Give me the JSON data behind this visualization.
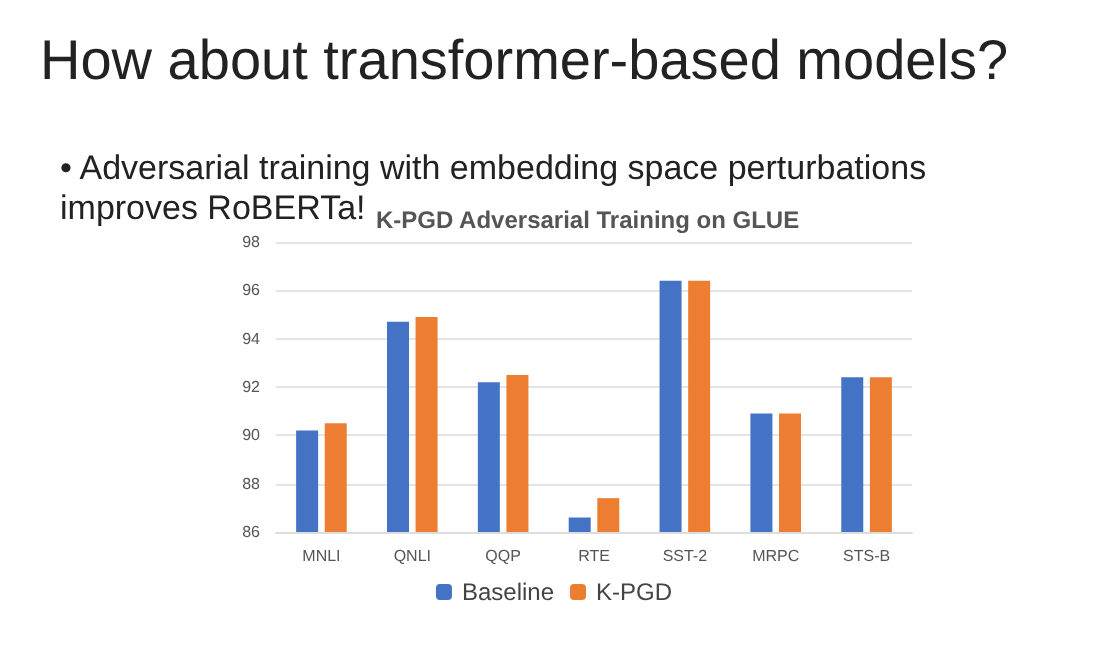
{
  "chart_data": {
    "type": "bar",
    "title": "K-PGD Adversarial Training on GLUE",
    "annotations": [
      "How about transformer-based models?",
      "• Adversarial training with embedding space perturbations improves RoBERTa!"
    ],
    "categories": [
      "MNLI",
      "QNLI",
      "QQP",
      "RTE",
      "SST-2",
      "MRPC",
      "STS-B"
    ],
    "series": [
      {
        "name": "Baseline",
        "color": "#4472c4",
        "values": [
          90.2,
          94.7,
          92.2,
          86.6,
          96.4,
          90.9,
          92.4
        ]
      },
      {
        "name": "K-PGD",
        "color": "#ed7d31",
        "values": [
          90.5,
          94.9,
          92.5,
          87.4,
          96.4,
          90.9,
          92.4
        ]
      }
    ],
    "ylim": [
      86,
      98
    ],
    "yticks": [
      86,
      88,
      90,
      92,
      94,
      96,
      98
    ],
    "grid": "y",
    "legend": "bottom"
  }
}
